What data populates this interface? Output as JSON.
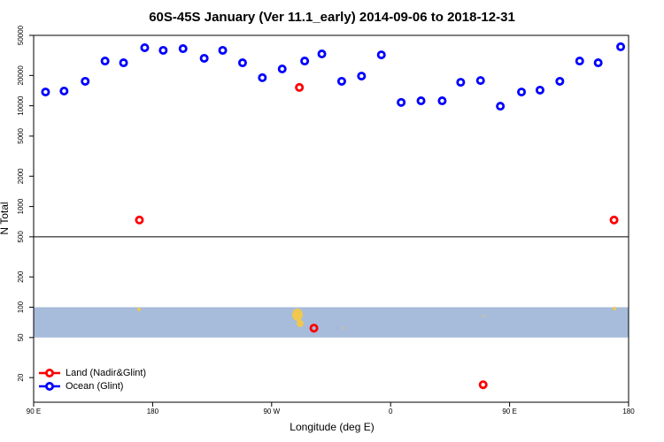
{
  "chart_data": {
    "type": "scatter",
    "title": "60S-45S January (Ver 11.1_early)   2014-09-06 to 2018-12-31",
    "x_label": "Longitude (deg E)",
    "y_label": "N Total",
    "xlim": [
      90,
      540
    ],
    "xticks": [
      {
        "value": 90,
        "label": "90 E"
      },
      {
        "value": 180,
        "label": "180"
      },
      {
        "value": 270,
        "label": "90 W"
      },
      {
        "value": 360,
        "label": "0"
      },
      {
        "value": 450,
        "label": "90 E"
      },
      {
        "value": 540,
        "label": "180"
      }
    ],
    "ylim": [
      11.4,
      50000
    ],
    "log_y": true,
    "yticks": [
      20,
      50,
      100,
      200,
      500,
      1000,
      2000,
      5000,
      10000,
      20000,
      50000
    ],
    "reference_line": 500,
    "band": [
      50,
      100
    ],
    "band_color": "#a7bbdb",
    "legend": "bottom-left",
    "series": [
      {
        "name": "Land (Nadir&Glint)",
        "color": "#ff0000",
        "x": [
          170,
          291,
          302,
          430,
          529
        ],
        "values": [
          734,
          15200,
          62,
          17,
          734
        ]
      },
      {
        "name": "Ocean (Glint)",
        "color": "#0000ff",
        "x": [
          99,
          113,
          129,
          144,
          158,
          174,
          188,
          203,
          219,
          233,
          248,
          263,
          278,
          295,
          308,
          323,
          338,
          353,
          368,
          383,
          399,
          413,
          428,
          443,
          459,
          473,
          488,
          503,
          517,
          534
        ],
        "values": [
          13700,
          14000,
          17500,
          27800,
          26700,
          37700,
          35500,
          36900,
          29600,
          35500,
          26700,
          19000,
          23200,
          27800,
          32700,
          17500,
          19700,
          32000,
          10800,
          11200,
          11200,
          17100,
          17800,
          9900,
          13700,
          14300,
          17500,
          27800,
          26700,
          38500
        ]
      }
    ]
  }
}
